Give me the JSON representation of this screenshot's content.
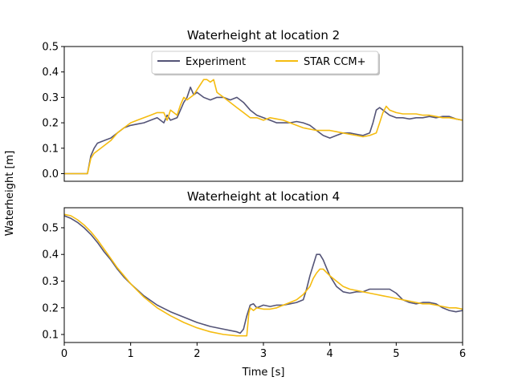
{
  "shared": {
    "xlabel": "Time [s]",
    "ylabel": "Waterheight [m]"
  },
  "colors": {
    "Experiment": "#545477",
    "STAR CCM+": "#f5bc10"
  },
  "chart_data": [
    {
      "type": "line",
      "title": "Waterheight at location 2",
      "xlim": [
        0,
        6
      ],
      "ylim": [
        -0.03,
        0.5
      ],
      "yticks": [
        "0.0",
        "0.1",
        "0.2",
        "0.3",
        "0.4",
        "0.5"
      ],
      "yticks_values": [
        0.0,
        0.1,
        0.2,
        0.3,
        0.4,
        0.5
      ],
      "show_xticks": false,
      "legend": "top-center",
      "series": [
        {
          "name": "Experiment",
          "x": [
            0,
            0.35,
            0.4,
            0.45,
            0.5,
            0.6,
            0.7,
            0.8,
            0.9,
            1.0,
            1.1,
            1.2,
            1.3,
            1.4,
            1.5,
            1.55,
            1.6,
            1.7,
            1.75,
            1.8,
            1.85,
            1.9,
            1.95,
            2.0,
            2.1,
            2.2,
            2.3,
            2.4,
            2.5,
            2.6,
            2.7,
            2.8,
            2.9,
            3.0,
            3.1,
            3.2,
            3.3,
            3.4,
            3.5,
            3.6,
            3.7,
            3.8,
            3.9,
            4.0,
            4.1,
            4.2,
            4.3,
            4.4,
            4.5,
            4.6,
            4.65,
            4.7,
            4.75,
            4.8,
            4.85,
            4.9,
            5.0,
            5.1,
            5.2,
            5.3,
            5.4,
            5.5,
            5.6,
            5.7,
            5.8,
            5.9,
            6.0
          ],
          "y": [
            0.0,
            0.0,
            0.07,
            0.1,
            0.12,
            0.13,
            0.14,
            0.16,
            0.18,
            0.19,
            0.195,
            0.2,
            0.21,
            0.22,
            0.2,
            0.23,
            0.21,
            0.22,
            0.25,
            0.28,
            0.3,
            0.34,
            0.31,
            0.32,
            0.3,
            0.29,
            0.3,
            0.3,
            0.29,
            0.3,
            0.28,
            0.25,
            0.23,
            0.22,
            0.21,
            0.2,
            0.2,
            0.2,
            0.205,
            0.2,
            0.19,
            0.17,
            0.15,
            0.14,
            0.15,
            0.16,
            0.16,
            0.155,
            0.15,
            0.16,
            0.2,
            0.25,
            0.26,
            0.25,
            0.24,
            0.23,
            0.22,
            0.22,
            0.215,
            0.22,
            0.22,
            0.225,
            0.22,
            0.225,
            0.225,
            0.215,
            0.21
          ]
        },
        {
          "name": "STAR CCM+",
          "x": [
            0,
            0.35,
            0.4,
            0.45,
            0.5,
            0.6,
            0.7,
            0.8,
            0.9,
            1.0,
            1.1,
            1.2,
            1.3,
            1.4,
            1.5,
            1.55,
            1.6,
            1.7,
            1.75,
            1.8,
            1.85,
            1.9,
            1.95,
            2.0,
            2.05,
            2.1,
            2.15,
            2.2,
            2.25,
            2.3,
            2.4,
            2.5,
            2.6,
            2.7,
            2.8,
            2.9,
            3.0,
            3.1,
            3.2,
            3.3,
            3.4,
            3.5,
            3.6,
            3.7,
            3.8,
            3.9,
            4.0,
            4.1,
            4.2,
            4.3,
            4.4,
            4.5,
            4.6,
            4.7,
            4.75,
            4.8,
            4.85,
            4.9,
            5.0,
            5.1,
            5.2,
            5.3,
            5.4,
            5.5,
            5.6,
            5.7,
            5.8,
            5.9,
            6.0
          ],
          "y": [
            0.0,
            0.0,
            0.06,
            0.08,
            0.09,
            0.11,
            0.13,
            0.16,
            0.18,
            0.2,
            0.21,
            0.22,
            0.23,
            0.24,
            0.24,
            0.21,
            0.25,
            0.23,
            0.27,
            0.3,
            0.29,
            0.3,
            0.31,
            0.33,
            0.35,
            0.37,
            0.37,
            0.36,
            0.37,
            0.32,
            0.3,
            0.28,
            0.26,
            0.24,
            0.22,
            0.22,
            0.21,
            0.22,
            0.215,
            0.21,
            0.2,
            0.19,
            0.18,
            0.175,
            0.17,
            0.17,
            0.17,
            0.165,
            0.16,
            0.155,
            0.15,
            0.145,
            0.15,
            0.16,
            0.2,
            0.24,
            0.265,
            0.25,
            0.24,
            0.235,
            0.235,
            0.235,
            0.23,
            0.23,
            0.225,
            0.22,
            0.22,
            0.215,
            0.21
          ]
        }
      ]
    },
    {
      "type": "line",
      "title": "Waterheight at location 4",
      "xlim": [
        0,
        6
      ],
      "ylim": [
        0.07,
        0.575
      ],
      "yticks": [
        "0.1",
        "0.2",
        "0.3",
        "0.4",
        "0.5"
      ],
      "yticks_values": [
        0.1,
        0.2,
        0.3,
        0.4,
        0.5
      ],
      "xticks": [
        "0",
        "1",
        "2",
        "3",
        "4",
        "5",
        "6"
      ],
      "xticks_values": [
        0,
        1,
        2,
        3,
        4,
        5,
        6
      ],
      "show_xticks": true,
      "series": [
        {
          "name": "Experiment",
          "x": [
            0,
            0.1,
            0.2,
            0.3,
            0.4,
            0.5,
            0.6,
            0.7,
            0.8,
            0.9,
            1.0,
            1.2,
            1.4,
            1.6,
            1.8,
            2.0,
            2.2,
            2.4,
            2.6,
            2.65,
            2.7,
            2.75,
            2.8,
            2.85,
            2.9,
            3.0,
            3.1,
            3.2,
            3.3,
            3.4,
            3.5,
            3.6,
            3.65,
            3.7,
            3.75,
            3.8,
            3.85,
            3.9,
            3.95,
            4.0,
            4.1,
            4.2,
            4.3,
            4.4,
            4.5,
            4.6,
            4.7,
            4.8,
            4.9,
            5.0,
            5.1,
            5.2,
            5.3,
            5.4,
            5.5,
            5.6,
            5.7,
            5.8,
            5.9,
            6.0
          ],
          "y": [
            0.545,
            0.535,
            0.52,
            0.5,
            0.475,
            0.445,
            0.41,
            0.38,
            0.345,
            0.315,
            0.29,
            0.245,
            0.21,
            0.185,
            0.165,
            0.145,
            0.13,
            0.12,
            0.11,
            0.105,
            0.12,
            0.17,
            0.21,
            0.215,
            0.2,
            0.21,
            0.205,
            0.21,
            0.21,
            0.215,
            0.22,
            0.23,
            0.27,
            0.32,
            0.36,
            0.4,
            0.4,
            0.38,
            0.35,
            0.32,
            0.28,
            0.26,
            0.255,
            0.26,
            0.26,
            0.27,
            0.27,
            0.27,
            0.27,
            0.255,
            0.23,
            0.22,
            0.215,
            0.22,
            0.22,
            0.215,
            0.2,
            0.19,
            0.185,
            0.19
          ]
        },
        {
          "name": "STAR CCM+",
          "x": [
            0,
            0.1,
            0.2,
            0.3,
            0.4,
            0.5,
            0.6,
            0.7,
            0.8,
            0.9,
            1.0,
            1.2,
            1.4,
            1.6,
            1.8,
            2.0,
            2.2,
            2.4,
            2.6,
            2.7,
            2.75,
            2.78,
            2.8,
            2.85,
            2.9,
            3.0,
            3.1,
            3.2,
            3.3,
            3.4,
            3.5,
            3.6,
            3.7,
            3.75,
            3.8,
            3.85,
            3.9,
            4.0,
            4.1,
            4.2,
            4.3,
            4.4,
            4.5,
            4.6,
            4.7,
            4.8,
            4.9,
            5.0,
            5.1,
            5.2,
            5.3,
            5.4,
            5.5,
            5.6,
            5.7,
            5.8,
            5.9,
            6.0
          ],
          "y": [
            0.55,
            0.545,
            0.53,
            0.51,
            0.485,
            0.455,
            0.42,
            0.385,
            0.35,
            0.32,
            0.29,
            0.24,
            0.2,
            0.17,
            0.145,
            0.125,
            0.11,
            0.1,
            0.095,
            0.095,
            0.095,
            0.18,
            0.2,
            0.19,
            0.2,
            0.195,
            0.195,
            0.2,
            0.21,
            0.22,
            0.23,
            0.25,
            0.28,
            0.31,
            0.33,
            0.345,
            0.345,
            0.32,
            0.3,
            0.28,
            0.27,
            0.265,
            0.26,
            0.255,
            0.25,
            0.245,
            0.24,
            0.235,
            0.23,
            0.225,
            0.22,
            0.215,
            0.215,
            0.21,
            0.205,
            0.2,
            0.2,
            0.195
          ]
        }
      ]
    }
  ]
}
